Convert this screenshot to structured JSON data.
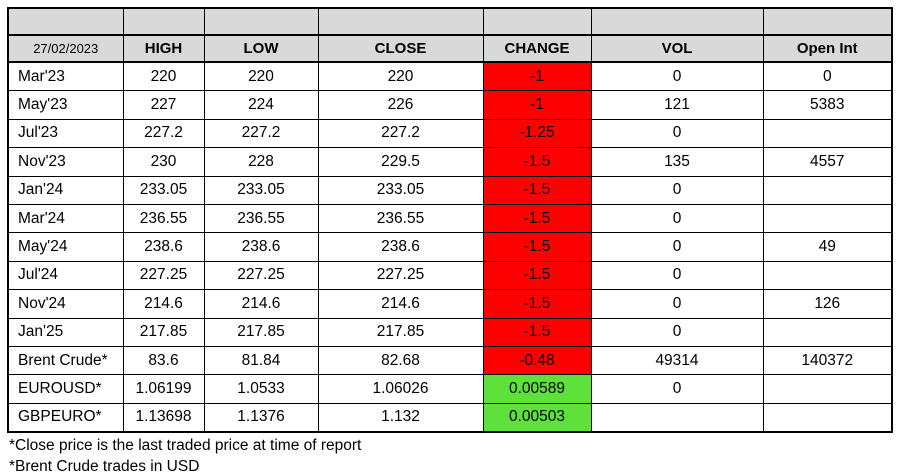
{
  "colors": {
    "header_bg": "#d9d9d9",
    "negative_bg": "#fe0000",
    "positive_bg": "#5ee13a",
    "border": "#000000"
  },
  "table": {
    "date": "27/02/2023",
    "columns": [
      "HIGH",
      "LOW",
      "CLOSE",
      "CHANGE",
      "VOL",
      "Open Int"
    ],
    "rows": [
      {
        "label": "Mar'23",
        "high": "220",
        "low": "220",
        "close": "220",
        "change": "-1",
        "trend": "down",
        "vol": "0",
        "open_int": "0"
      },
      {
        "label": "May'23",
        "high": "227",
        "low": "224",
        "close": "226",
        "change": "-1",
        "trend": "down",
        "vol": "121",
        "open_int": "5383"
      },
      {
        "label": "Jul'23",
        "high": "227.2",
        "low": "227.2",
        "close": "227.2",
        "change": "-1.25",
        "trend": "down",
        "vol": "0",
        "open_int": ""
      },
      {
        "label": "Nov'23",
        "high": "230",
        "low": "228",
        "close": "229.5",
        "change": "-1.5",
        "trend": "down",
        "vol": "135",
        "open_int": "4557"
      },
      {
        "label": "Jan'24",
        "high": "233.05",
        "low": "233.05",
        "close": "233.05",
        "change": "-1.5",
        "trend": "down",
        "vol": "0",
        "open_int": ""
      },
      {
        "label": "Mar'24",
        "high": "236.55",
        "low": "236.55",
        "close": "236.55",
        "change": "-1.5",
        "trend": "down",
        "vol": "0",
        "open_int": ""
      },
      {
        "label": "May'24",
        "high": "238.6",
        "low": "238.6",
        "close": "238.6",
        "change": "-1.5",
        "trend": "down",
        "vol": "0",
        "open_int": "49"
      },
      {
        "label": "Jul'24",
        "high": "227.25",
        "low": "227.25",
        "close": "227.25",
        "change": "-1.5",
        "trend": "down",
        "vol": "0",
        "open_int": ""
      },
      {
        "label": "Nov'24",
        "high": "214.6",
        "low": "214.6",
        "close": "214.6",
        "change": "-1.5",
        "trend": "down",
        "vol": "0",
        "open_int": "126"
      },
      {
        "label": "Jan'25",
        "high": "217.85",
        "low": "217.85",
        "close": "217.85",
        "change": "-1.5",
        "trend": "down",
        "vol": "0",
        "open_int": ""
      },
      {
        "label": "Brent Crude*",
        "high": "83.6",
        "low": "81.84",
        "close": "82.68",
        "change": "-0.48",
        "trend": "down",
        "vol": "49314",
        "open_int": "140372"
      },
      {
        "label": "EUROUSD*",
        "high": "1.06199",
        "low": "1.0533",
        "close": "1.06026",
        "change": "0.00589",
        "trend": "up",
        "vol": "0",
        "open_int": ""
      },
      {
        "label": "GBPEURO*",
        "high": "1.13698",
        "low": "1.1376",
        "close": "1.132",
        "change": "0.00503",
        "trend": "up",
        "vol": "",
        "open_int": ""
      }
    ],
    "footnotes": [
      "*Close price is the last traded price at time of report",
      "*Brent Crude trades in USD"
    ]
  }
}
